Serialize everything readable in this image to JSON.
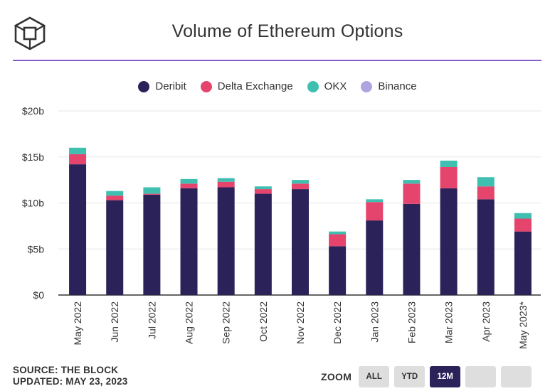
{
  "header": {
    "logo": "the-block-cube-logo",
    "title": "Volume of Ethereum Options"
  },
  "chart_data": {
    "type": "bar",
    "stacked": true,
    "title": "Volume of Ethereum Options",
    "categories": [
      "May 2022",
      "Jun 2022",
      "Jul 2022",
      "Aug 2022",
      "Sep 2022",
      "Oct 2022",
      "Nov 2022",
      "Dec 2022",
      "Jan 2023",
      "Feb 2023",
      "Mar 2023",
      "Apr 2023",
      "May 2023*"
    ],
    "series": [
      {
        "name": "Deribit",
        "color": "#2a2259",
        "values": [
          14.2,
          10.3,
          10.9,
          11.6,
          11.7,
          11.0,
          11.5,
          5.3,
          8.1,
          9.9,
          11.6,
          10.4,
          6.9
        ]
      },
      {
        "name": "Delta Exchange",
        "color": "#e5446d",
        "values": [
          1.1,
          0.5,
          0.1,
          0.5,
          0.6,
          0.5,
          0.6,
          1.3,
          2.0,
          2.2,
          2.3,
          1.4,
          1.4
        ]
      },
      {
        "name": "OKX",
        "color": "#3fbfb0",
        "values": [
          0.7,
          0.5,
          0.7,
          0.5,
          0.4,
          0.3,
          0.4,
          0.3,
          0.3,
          0.4,
          0.7,
          1.0,
          0.6
        ]
      },
      {
        "name": "Binance",
        "color": "#b0a4e0",
        "values": [
          0,
          0,
          0,
          0,
          0,
          0,
          0,
          0,
          0,
          0,
          0,
          0,
          0
        ]
      }
    ],
    "ylim": [
      0,
      20
    ],
    "yticks": [
      0,
      5,
      10,
      15,
      20
    ],
    "ytick_labels": [
      "$0",
      "$5b",
      "$10b",
      "$15b",
      "$20b"
    ],
    "xlabel": "",
    "ylabel": "",
    "grid": true,
    "legend_position": "top-center"
  },
  "footer": {
    "source": "SOURCE: THE BLOCK",
    "updated": "UPDATED: MAY 23, 2023"
  },
  "zoom": {
    "label": "ZOOM",
    "buttons": [
      {
        "label": "ALL",
        "active": false
      },
      {
        "label": "YTD",
        "active": false
      },
      {
        "label": "12M",
        "active": true
      },
      {
        "label": "",
        "active": false
      },
      {
        "label": "",
        "active": false
      }
    ]
  }
}
